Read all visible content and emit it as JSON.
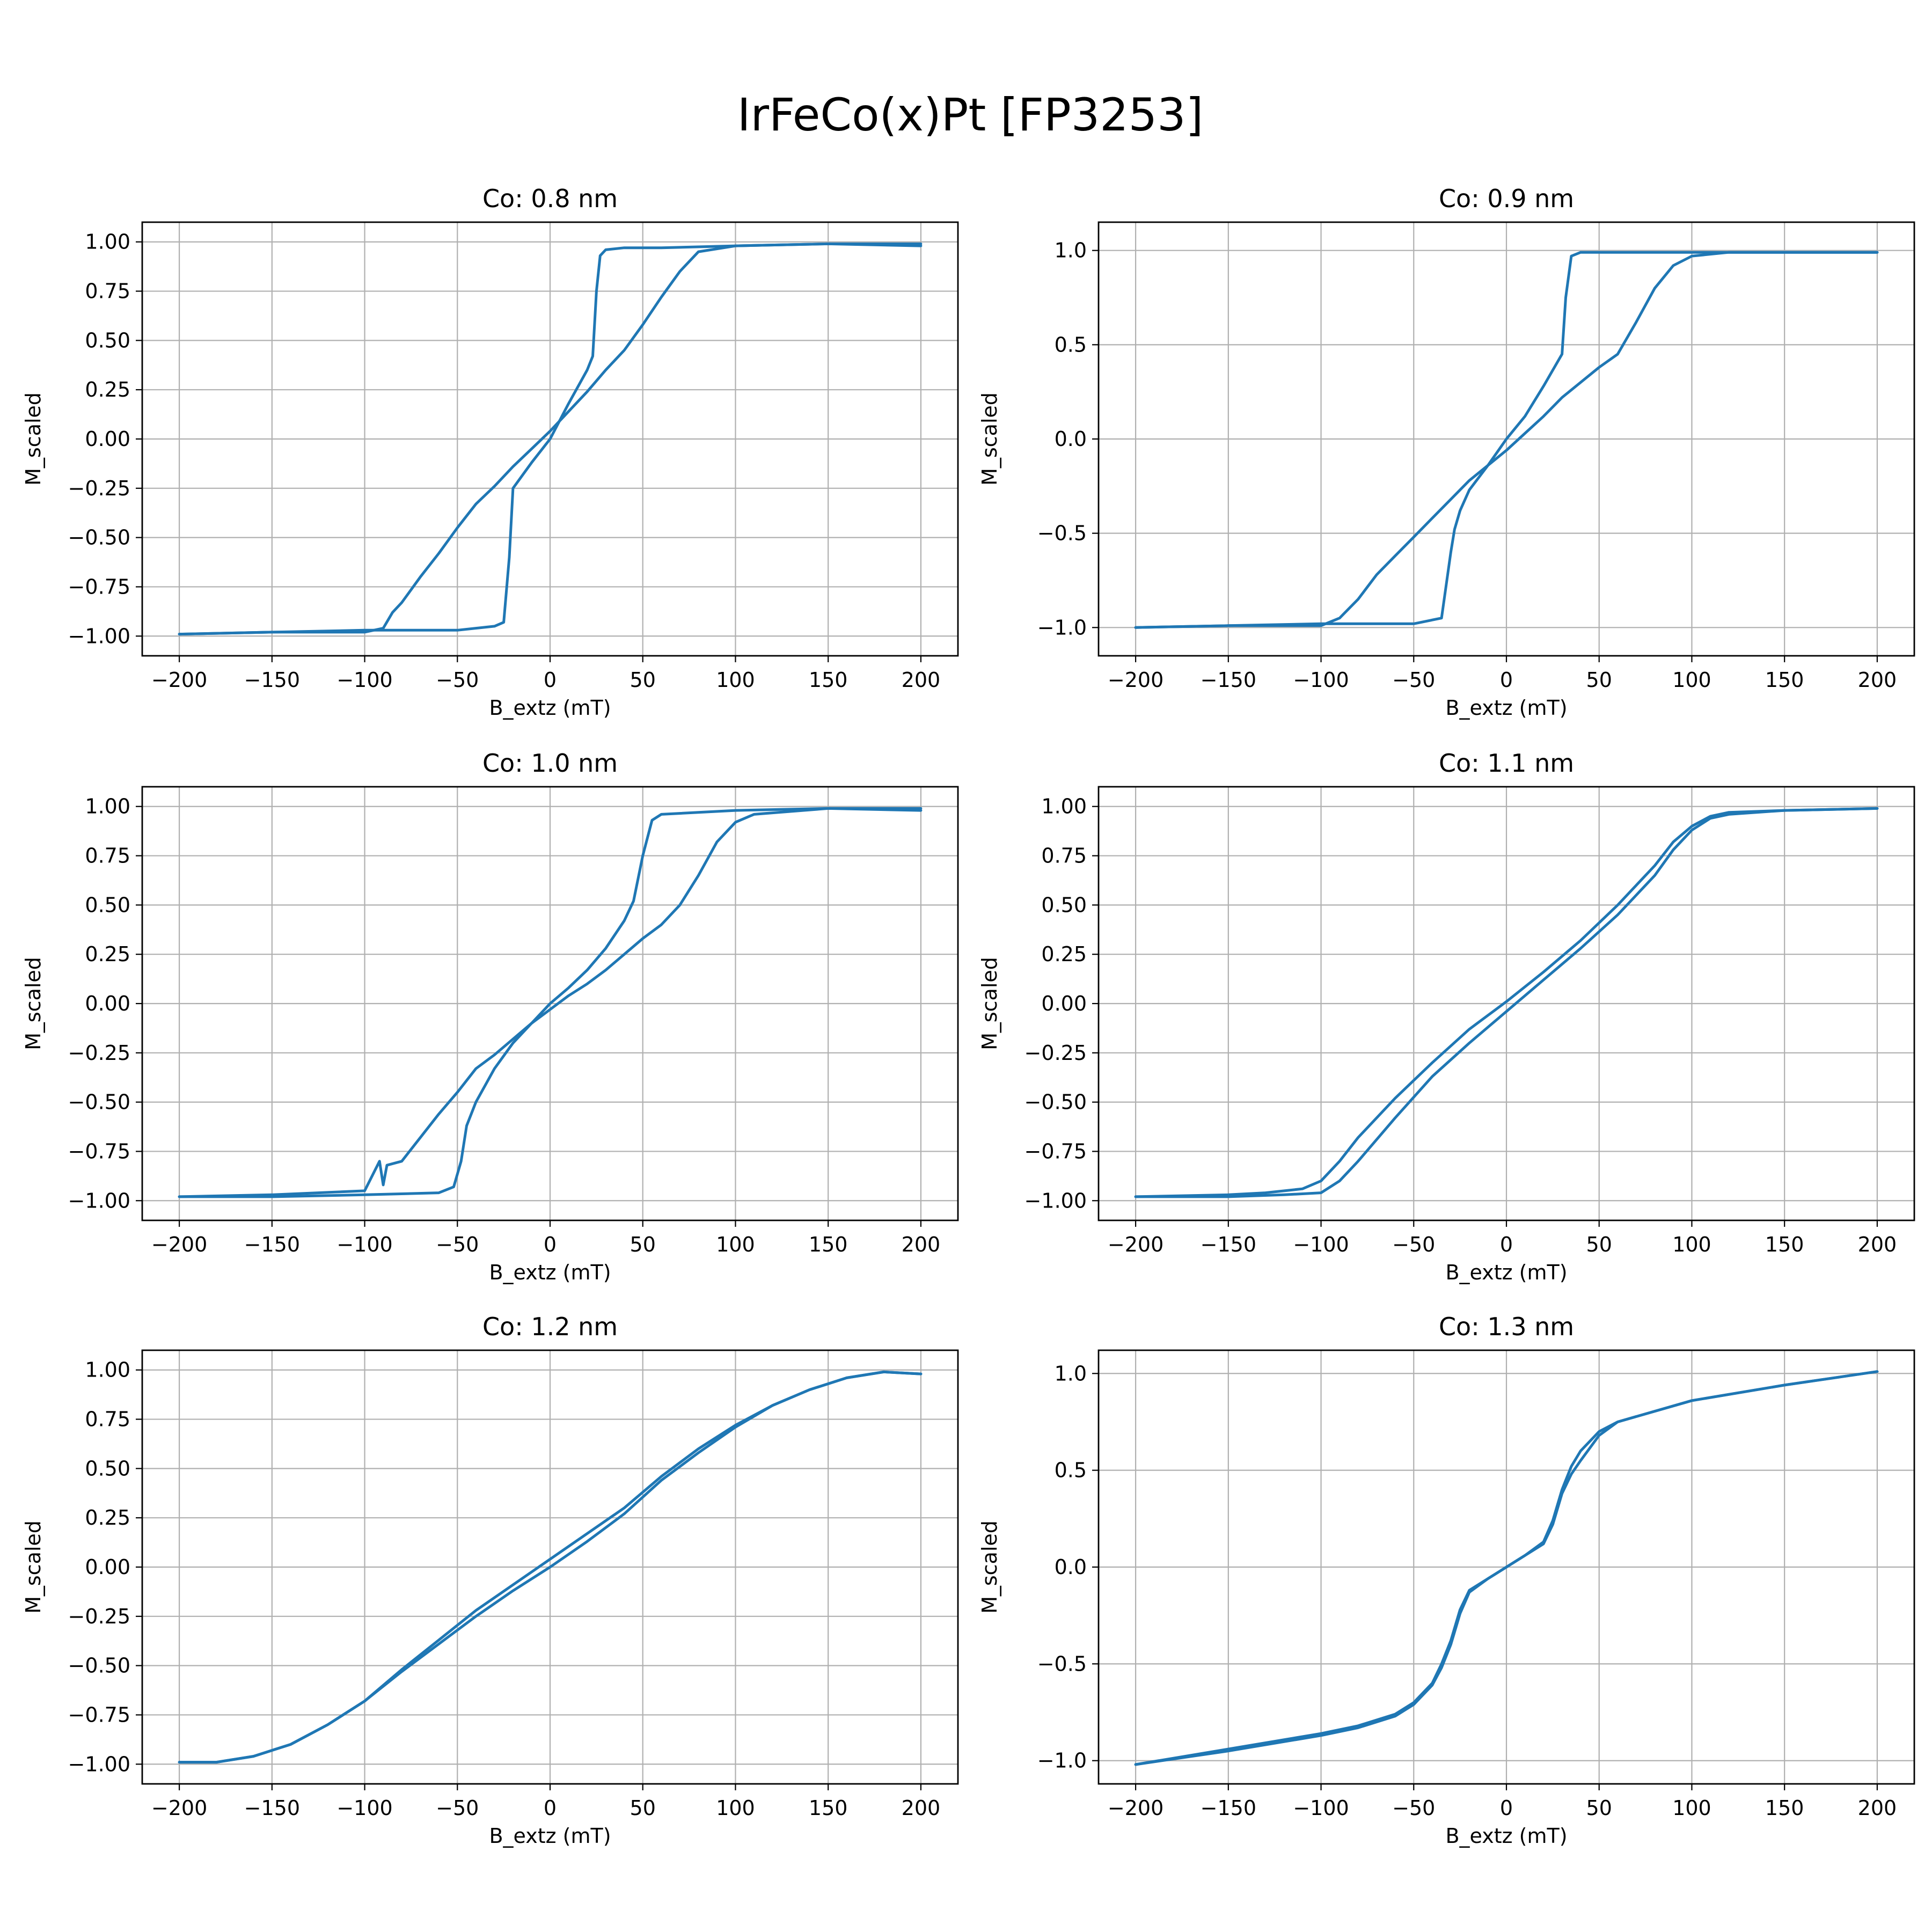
{
  "figure": {
    "title": "IrFeCo(x)Pt [FP3253]"
  },
  "style": {
    "line_color": "#1f77b4",
    "grid_color": "#b0b0b0",
    "axis_color": "#000000",
    "background": "#ffffff"
  },
  "chart_data": [
    {
      "type": "line",
      "title": "Co: 0.8 nm",
      "xlabel": "B_extz (mT)",
      "ylabel": "M_scaled",
      "xlim": [
        -220,
        220
      ],
      "ylim": [
        -1.1,
        1.1
      ],
      "xticks": [
        -200,
        -150,
        -100,
        -50,
        0,
        50,
        100,
        150,
        200
      ],
      "xtick_labels": [
        "−200",
        "−150",
        "−100",
        "−50",
        "0",
        "50",
        "100",
        "150",
        "200"
      ],
      "yticks": [
        -1.0,
        -0.75,
        -0.5,
        -0.25,
        0.0,
        0.25,
        0.5,
        0.75,
        1.0
      ],
      "ytick_labels": [
        "−1.00",
        "−0.75",
        "−0.50",
        "−0.25",
        "0.00",
        "0.25",
        "0.50",
        "0.75",
        "1.00"
      ],
      "grid": true,
      "series": [
        {
          "x": [
            200,
            150,
            100,
            80,
            70,
            60,
            50,
            40,
            30,
            20,
            10,
            0,
            -10,
            -20,
            -30,
            -40,
            -50,
            -60,
            -70,
            -80,
            -85,
            -90,
            -100,
            -150,
            -200
          ],
          "y": [
            0.98,
            0.99,
            0.98,
            0.95,
            0.85,
            0.72,
            0.58,
            0.45,
            0.35,
            0.24,
            0.14,
            0.04,
            -0.05,
            -0.14,
            -0.24,
            -0.33,
            -0.45,
            -0.58,
            -0.7,
            -0.83,
            -0.88,
            -0.96,
            -0.98,
            -0.98,
            -0.99
          ]
        },
        {
          "x": [
            -200,
            -150,
            -100,
            -50,
            -30,
            -25,
            -22,
            -20,
            -10,
            0,
            10,
            20,
            23,
            25,
            27,
            30,
            40,
            60,
            100,
            150,
            200
          ],
          "y": [
            -0.99,
            -0.98,
            -0.97,
            -0.97,
            -0.95,
            -0.93,
            -0.6,
            -0.25,
            -0.12,
            0.0,
            0.18,
            0.35,
            0.42,
            0.75,
            0.93,
            0.96,
            0.97,
            0.97,
            0.98,
            0.99,
            0.99
          ]
        }
      ]
    },
    {
      "type": "line",
      "title": "Co: 0.9 nm",
      "xlabel": "B_extz (mT)",
      "ylabel": "M_scaled",
      "xlim": [
        -220,
        220
      ],
      "ylim": [
        -1.15,
        1.15
      ],
      "xticks": [
        -200,
        -150,
        -100,
        -50,
        0,
        50,
        100,
        150,
        200
      ],
      "xtick_labels": [
        "−200",
        "−150",
        "−100",
        "−50",
        "0",
        "50",
        "100",
        "150",
        "200"
      ],
      "yticks": [
        -1.0,
        -0.5,
        0.0,
        0.5,
        1.0
      ],
      "ytick_labels": [
        "−1.0",
        "−0.5",
        "0.0",
        "0.5",
        "1.0"
      ],
      "grid": true,
      "series": [
        {
          "x": [
            200,
            150,
            120,
            100,
            90,
            80,
            70,
            60,
            50,
            40,
            30,
            20,
            10,
            0,
            -10,
            -20,
            -30,
            -40,
            -50,
            -60,
            -70,
            -80,
            -90,
            -100,
            -150,
            -200
          ],
          "y": [
            0.99,
            0.99,
            0.99,
            0.97,
            0.92,
            0.8,
            0.62,
            0.45,
            0.38,
            0.3,
            0.22,
            0.12,
            0.03,
            -0.06,
            -0.14,
            -0.22,
            -0.32,
            -0.42,
            -0.52,
            -0.62,
            -0.72,
            -0.85,
            -0.95,
            -0.99,
            -0.99,
            -1.0
          ]
        },
        {
          "x": [
            -200,
            -150,
            -100,
            -50,
            -35,
            -30,
            -28,
            -25,
            -20,
            -10,
            0,
            10,
            20,
            30,
            32,
            35,
            40,
            60,
            100,
            150,
            200
          ],
          "y": [
            -1.0,
            -0.99,
            -0.98,
            -0.98,
            -0.95,
            -0.6,
            -0.48,
            -0.38,
            -0.27,
            -0.14,
            0.0,
            0.12,
            0.28,
            0.45,
            0.75,
            0.97,
            0.99,
            0.99,
            0.99,
            0.99,
            0.99
          ]
        }
      ]
    },
    {
      "type": "line",
      "title": "Co: 1.0 nm",
      "xlabel": "B_extz (mT)",
      "ylabel": "M_scaled",
      "xlim": [
        -220,
        220
      ],
      "ylim": [
        -1.1,
        1.1
      ],
      "xticks": [
        -200,
        -150,
        -100,
        -50,
        0,
        50,
        100,
        150,
        200
      ],
      "xtick_labels": [
        "−200",
        "−150",
        "−100",
        "−50",
        "0",
        "50",
        "100",
        "150",
        "200"
      ],
      "yticks": [
        -1.0,
        -0.75,
        -0.5,
        -0.25,
        0.0,
        0.25,
        0.5,
        0.75,
        1.0
      ],
      "ytick_labels": [
        "−1.00",
        "−0.75",
        "−0.50",
        "−0.25",
        "0.00",
        "0.25",
        "0.50",
        "0.75",
        "1.00"
      ],
      "grid": true,
      "series": [
        {
          "x": [
            200,
            150,
            110,
            100,
            90,
            80,
            70,
            60,
            50,
            40,
            30,
            20,
            10,
            0,
            -10,
            -20,
            -30,
            -40,
            -50,
            -60,
            -70,
            -80,
            -88,
            -90,
            -92,
            -100,
            -150,
            -200
          ],
          "y": [
            0.98,
            0.99,
            0.96,
            0.92,
            0.82,
            0.65,
            0.5,
            0.4,
            0.33,
            0.25,
            0.17,
            0.1,
            0.04,
            -0.03,
            -0.1,
            -0.18,
            -0.26,
            -0.33,
            -0.45,
            -0.56,
            -0.68,
            -0.8,
            -0.82,
            -0.92,
            -0.8,
            -0.95,
            -0.97,
            -0.98
          ]
        },
        {
          "x": [
            -200,
            -150,
            -100,
            -60,
            -52,
            -48,
            -45,
            -40,
            -30,
            -20,
            -10,
            0,
            10,
            20,
            30,
            40,
            45,
            50,
            55,
            60,
            100,
            150,
            200
          ],
          "y": [
            -0.98,
            -0.98,
            -0.97,
            -0.96,
            -0.93,
            -0.8,
            -0.62,
            -0.5,
            -0.33,
            -0.2,
            -0.1,
            0.0,
            0.08,
            0.17,
            0.28,
            0.42,
            0.52,
            0.75,
            0.93,
            0.96,
            0.98,
            0.99,
            0.99
          ]
        }
      ]
    },
    {
      "type": "line",
      "title": "Co: 1.1 nm",
      "xlabel": "B_extz (mT)",
      "ylabel": "M_scaled",
      "xlim": [
        -220,
        220
      ],
      "ylim": [
        -1.1,
        1.1
      ],
      "xticks": [
        -200,
        -150,
        -100,
        -50,
        0,
        50,
        100,
        150,
        200
      ],
      "xtick_labels": [
        "−200",
        "−150",
        "−100",
        "−50",
        "0",
        "50",
        "100",
        "150",
        "200"
      ],
      "yticks": [
        -1.0,
        -0.75,
        -0.5,
        -0.25,
        0.0,
        0.25,
        0.5,
        0.75,
        1.0
      ],
      "ytick_labels": [
        "−1.00",
        "−0.75",
        "−0.50",
        "−0.25",
        "0.00",
        "0.25",
        "0.50",
        "0.75",
        "1.00"
      ],
      "grid": true,
      "series": [
        {
          "x": [
            200,
            150,
            120,
            110,
            100,
            90,
            80,
            60,
            40,
            20,
            0,
            -20,
            -40,
            -60,
            -80,
            -90,
            -100,
            -110,
            -130,
            -150,
            -200
          ],
          "y": [
            0.99,
            0.98,
            0.97,
            0.95,
            0.9,
            0.82,
            0.7,
            0.5,
            0.32,
            0.16,
            0.01,
            -0.13,
            -0.3,
            -0.48,
            -0.68,
            -0.8,
            -0.9,
            -0.94,
            -0.96,
            -0.97,
            -0.98
          ]
        },
        {
          "x": [
            -200,
            -150,
            -120,
            -100,
            -90,
            -80,
            -60,
            -40,
            -20,
            0,
            20,
            40,
            60,
            80,
            90,
            100,
            110,
            120,
            150,
            200
          ],
          "y": [
            -0.98,
            -0.98,
            -0.97,
            -0.96,
            -0.9,
            -0.8,
            -0.58,
            -0.37,
            -0.2,
            -0.04,
            0.12,
            0.28,
            0.45,
            0.65,
            0.78,
            0.88,
            0.94,
            0.96,
            0.98,
            0.99
          ]
        }
      ]
    },
    {
      "type": "line",
      "title": "Co: 1.2 nm",
      "xlabel": "B_extz (mT)",
      "ylabel": "M_scaled",
      "xlim": [
        -220,
        220
      ],
      "ylim": [
        -1.1,
        1.1
      ],
      "xticks": [
        -200,
        -150,
        -100,
        -50,
        0,
        50,
        100,
        150,
        200
      ],
      "xtick_labels": [
        "−200",
        "−150",
        "−100",
        "−50",
        "0",
        "50",
        "100",
        "150",
        "200"
      ],
      "yticks": [
        -1.0,
        -0.75,
        -0.5,
        -0.25,
        0.0,
        0.25,
        0.5,
        0.75,
        1.0
      ],
      "ytick_labels": [
        "−1.00",
        "−0.75",
        "−0.50",
        "−0.25",
        "0.00",
        "0.25",
        "0.50",
        "0.75",
        "1.00"
      ],
      "grid": true,
      "series": [
        {
          "x": [
            200,
            180,
            160,
            140,
            120,
            100,
            80,
            60,
            40,
            20,
            0,
            -20,
            -40,
            -60,
            -80,
            -100,
            -120,
            -140,
            -160,
            -180,
            -200
          ],
          "y": [
            0.98,
            0.99,
            0.96,
            0.9,
            0.82,
            0.72,
            0.6,
            0.46,
            0.3,
            0.17,
            0.04,
            -0.09,
            -0.22,
            -0.37,
            -0.52,
            -0.68,
            -0.8,
            -0.9,
            -0.96,
            -0.99,
            -0.99
          ]
        },
        {
          "x": [
            -200,
            -180,
            -160,
            -140,
            -120,
            -100,
            -80,
            -60,
            -40,
            -20,
            0,
            20,
            40,
            60,
            80,
            100,
            120,
            140,
            160,
            180,
            200
          ],
          "y": [
            -0.99,
            -0.99,
            -0.96,
            -0.9,
            -0.8,
            -0.68,
            -0.53,
            -0.39,
            -0.25,
            -0.12,
            0.0,
            0.13,
            0.27,
            0.44,
            0.58,
            0.71,
            0.82,
            0.9,
            0.96,
            0.99,
            0.98
          ]
        }
      ]
    },
    {
      "type": "line",
      "title": "Co: 1.3 nm",
      "xlabel": "B_extz (mT)",
      "ylabel": "M_scaled",
      "xlim": [
        -220,
        220
      ],
      "ylim": [
        -1.12,
        1.12
      ],
      "xticks": [
        -200,
        -150,
        -100,
        -50,
        0,
        50,
        100,
        150,
        200
      ],
      "xtick_labels": [
        "−200",
        "−150",
        "−100",
        "−50",
        "0",
        "50",
        "100",
        "150",
        "200"
      ],
      "yticks": [
        -1.0,
        -0.5,
        0.0,
        0.5,
        1.0
      ],
      "ytick_labels": [
        "−1.0",
        "−0.5",
        "0.0",
        "0.5",
        "1.0"
      ],
      "grid": true,
      "series": [
        {
          "x": [
            200,
            150,
            100,
            60,
            50,
            40,
            35,
            30,
            25,
            20,
            10,
            0,
            -10,
            -20,
            -25,
            -30,
            -35,
            -40,
            -50,
            -60,
            -80,
            -100,
            -150,
            -200
          ],
          "y": [
            1.01,
            0.94,
            0.86,
            0.75,
            0.68,
            0.55,
            0.48,
            0.38,
            0.22,
            0.12,
            0.06,
            0.0,
            -0.06,
            -0.12,
            -0.22,
            -0.38,
            -0.5,
            -0.6,
            -0.7,
            -0.76,
            -0.82,
            -0.86,
            -0.94,
            -1.02
          ]
        },
        {
          "x": [
            -200,
            -150,
            -100,
            -80,
            -60,
            -50,
            -40,
            -35,
            -30,
            -25,
            -20,
            -10,
            0,
            10,
            20,
            25,
            30,
            35,
            40,
            50,
            60,
            100,
            150,
            200
          ],
          "y": [
            -1.02,
            -0.95,
            -0.87,
            -0.83,
            -0.77,
            -0.71,
            -0.61,
            -0.52,
            -0.4,
            -0.24,
            -0.13,
            -0.06,
            0.0,
            0.06,
            0.13,
            0.24,
            0.4,
            0.52,
            0.6,
            0.7,
            0.75,
            0.86,
            0.94,
            1.01
          ]
        }
      ]
    }
  ]
}
